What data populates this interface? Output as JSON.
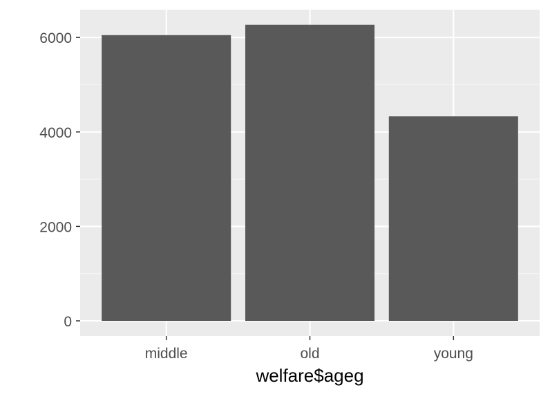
{
  "chart_data": {
    "type": "bar",
    "categories": [
      "middle",
      "old",
      "young"
    ],
    "values": [
      6050,
      6270,
      4330
    ],
    "title": "",
    "xlabel": "welfare$ageg",
    "ylabel": "",
    "ylim": [
      0,
      6600
    ],
    "y_ticks": [
      0,
      2000,
      4000,
      6000
    ],
    "y_tick_labels": [
      "0",
      "2000",
      "4000",
      "6000"
    ],
    "grid": true,
    "legend": "none"
  },
  "colors": {
    "panel_background": "#ebebeb",
    "grid_major": "#ffffff",
    "grid_minor": "#f5f5f5",
    "bar_fill": "#595959",
    "tick_label": "#4d4d4d",
    "axis_title": "#000000"
  }
}
